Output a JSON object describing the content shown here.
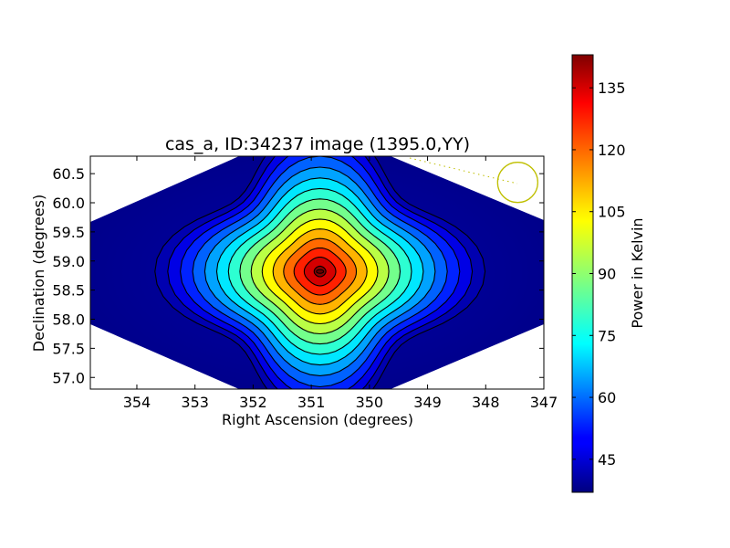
{
  "chart_data": {
    "type": "heatmap",
    "title": "cas_a, ID:34237 image (1395.0,YY)",
    "xlabel": "Right Ascension (degrees)",
    "ylabel": "Declination (degrees)",
    "xlim": [
      354.8,
      347.0
    ],
    "ylim": [
      56.8,
      60.8
    ],
    "x_ticks": [
      "354",
      "353",
      "352",
      "351",
      "350",
      "349",
      "348",
      "347"
    ],
    "y_ticks": [
      "57.0",
      "57.5",
      "58.0",
      "58.5",
      "59.0",
      "59.5",
      "60.0",
      "60.5"
    ],
    "peak": {
      "ra": 350.85,
      "dec": 58.82,
      "value": 142
    },
    "background_value": 40,
    "contour_count": 15,
    "beam_circle": {
      "ra": 347.45,
      "dec": 60.35,
      "color": "#bfbf00"
    },
    "colorbar": {
      "label": "Power in Kelvin",
      "min": 37,
      "max": 143,
      "ticks": [
        "45",
        "60",
        "75",
        "90",
        "105",
        "120",
        "135"
      ],
      "colormap": "jet"
    },
    "grid": false,
    "colors": {
      "nan_edge": "#ffffff",
      "beam": "#bfbf00",
      "contour": "#000000"
    }
  }
}
